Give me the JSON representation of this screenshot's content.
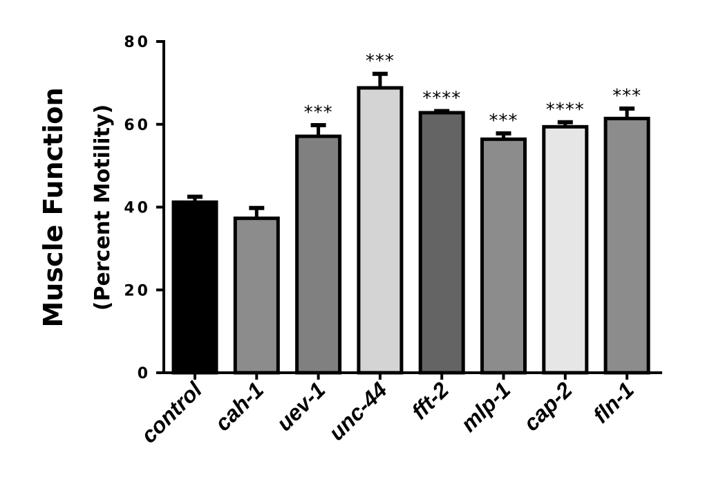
{
  "chart_data": {
    "type": "bar",
    "title": "",
    "xlabel": "",
    "ylabel": "Muscle Function",
    "ylabel_sub": "(Percent Motility)",
    "ylim": [
      0,
      80
    ],
    "yticks": [
      "0",
      "20",
      "40",
      "60",
      "80"
    ],
    "grid": false,
    "categories": [
      "control",
      "cah-1",
      "uev-1",
      "unc-44",
      "fft-2",
      "mlp-1",
      "cap-2",
      "fln-1"
    ],
    "values": [
      41.2,
      37.3,
      57.1,
      68.8,
      62.8,
      56.4,
      59.4,
      61.4
    ],
    "error": [
      1.3,
      2.5,
      2.7,
      3.4,
      0.4,
      1.4,
      1.1,
      2.4
    ],
    "significance": [
      "",
      "",
      "***",
      "***",
      "****",
      "***",
      "****",
      "***"
    ],
    "colors": [
      "#000000",
      "#8c8c8c",
      "#808080",
      "#d4d4d4",
      "#646464",
      "#8c8c8c",
      "#e6e6e6",
      "#8c8c8c"
    ]
  }
}
